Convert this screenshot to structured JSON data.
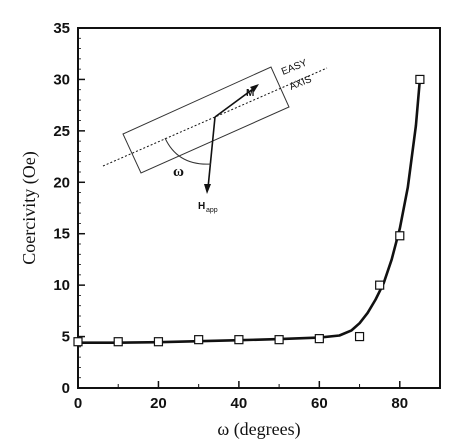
{
  "chart_data": {
    "type": "line",
    "xlabel": "ω (degrees)",
    "ylabel": "Coercivity (Oe)",
    "xlim": [
      0,
      90
    ],
    "ylim": [
      0,
      35
    ],
    "x_ticks": [
      0,
      20,
      40,
      60,
      80
    ],
    "y_ticks": [
      0,
      5,
      10,
      15,
      20,
      25,
      30,
      35
    ],
    "grid": false,
    "series": [
      {
        "marker": "open-square",
        "x": [
          0,
          10,
          20,
          30,
          40,
          50,
          60,
          70,
          75,
          80,
          85
        ],
        "y": [
          4.5,
          4.5,
          4.5,
          4.7,
          4.7,
          4.7,
          4.8,
          5.0,
          10.0,
          14.8,
          30.0
        ]
      },
      {
        "style": "solid-thick",
        "x": [
          0,
          10,
          20,
          30,
          40,
          50,
          60,
          65,
          68,
          70,
          72,
          74,
          76,
          78,
          80,
          82,
          84,
          85
        ],
        "y": [
          4.4,
          4.4,
          4.45,
          4.55,
          4.65,
          4.75,
          4.9,
          5.1,
          5.6,
          6.3,
          7.3,
          8.6,
          10.2,
          12.5,
          15.5,
          19.5,
          25.5,
          30.0
        ]
      }
    ],
    "inset": {
      "easy_label": "EASY",
      "axis_label": "AXIS",
      "m_label": "M",
      "h_label": "H",
      "h_sub": "app",
      "omega_label": "ω"
    }
  }
}
